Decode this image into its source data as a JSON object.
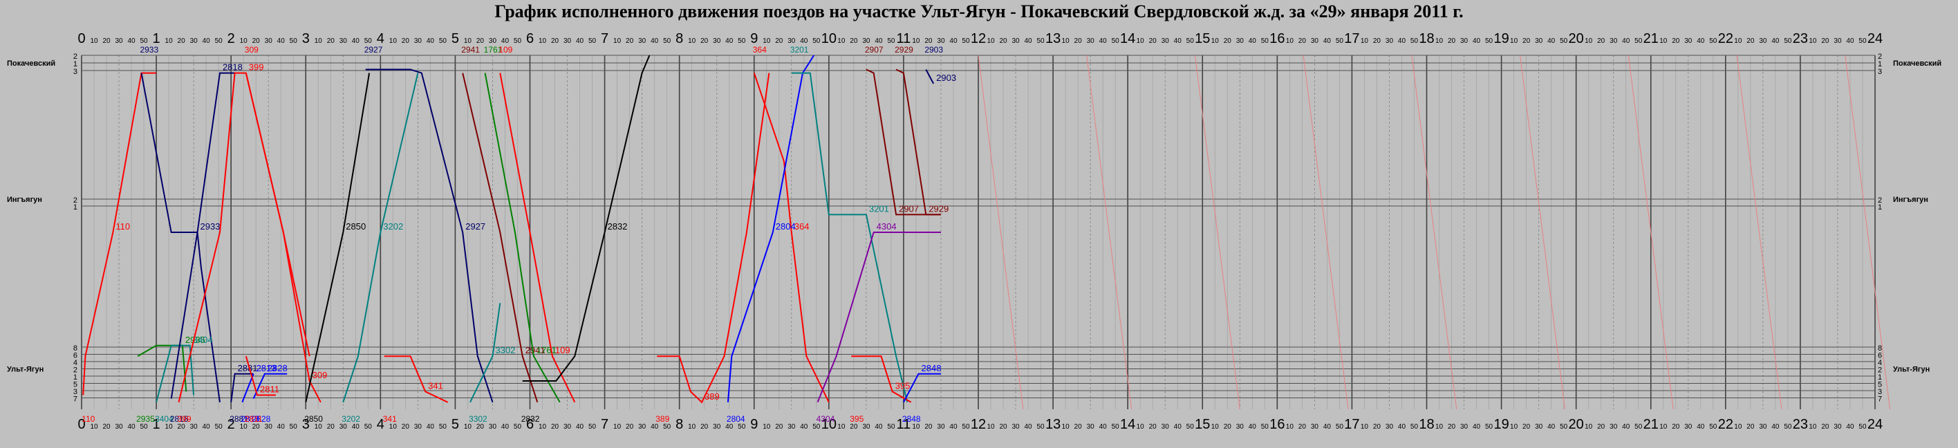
{
  "title": "График исполненного движения поездов на участке Ульт-Ягун - Покачевский  Свердловской ж.д. за «29» января 2011 г.",
  "chart_data": {
    "type": "line",
    "title": "График исполненного движения поездов на участке Ульт-Ягун - Покачевский  Свердловской ж.д. за «29» января 2011 г.",
    "x_unit": "hours",
    "xlim": [
      0,
      24
    ],
    "hour_labels": [
      "0",
      "1",
      "2",
      "3",
      "4",
      "5",
      "6",
      "7",
      "8",
      "9",
      "10",
      "11",
      "12",
      "13",
      "14",
      "15",
      "16",
      "17",
      "18",
      "19",
      "20",
      "21",
      "22",
      "23",
      "24"
    ],
    "minute_labels": [
      "10",
      "20",
      "30",
      "40",
      "50"
    ],
    "stations": [
      {
        "name": "Покачевский",
        "tracks": [
          "2",
          "1",
          "3"
        ]
      },
      {
        "name": "Ингъягун",
        "tracks": [
          "2",
          "1"
        ]
      },
      {
        "name": "Ульт-Ягун",
        "tracks": [
          "8",
          "6",
          "4",
          "2",
          "1",
          "5",
          "3",
          "7"
        ]
      }
    ],
    "colors": {
      "red": "#ff0000",
      "navy": "#00006a",
      "blue": "#0000ff",
      "teal": "#008080",
      "black": "#000000",
      "green": "#008000",
      "maroon": "#800000",
      "purple": "#8000a0",
      "pink": "#e88080"
    },
    "trains": [
      {
        "name": "110",
        "color": "red",
        "pts": [
          [
            0.02,
            0.96
          ],
          [
            0.05,
            0.85
          ],
          [
            0.42,
            0.5
          ],
          [
            0.8,
            0.05
          ],
          [
            1.0,
            0.05
          ]
        ]
      },
      {
        "name": "2933",
        "color": "navy",
        "pts": [
          [
            0.8,
            0.05
          ],
          [
            1.2,
            0.5
          ],
          [
            1.55,
            0.5
          ],
          [
            1.6,
            0.6
          ],
          [
            1.85,
            0.98
          ]
        ]
      },
      {
        "name": "2935",
        "color": "green",
        "pts": [
          [
            0.75,
            0.85
          ],
          [
            1.0,
            0.82
          ],
          [
            1.35,
            0.82
          ],
          [
            1.4,
            0.95
          ]
        ]
      },
      {
        "name": "3404",
        "color": "teal",
        "pts": [
          [
            1.0,
            0.98
          ],
          [
            1.2,
            0.82
          ],
          [
            1.45,
            0.82
          ],
          [
            1.5,
            0.96
          ]
        ]
      },
      {
        "name": "2818",
        "color": "navy",
        "pts": [
          [
            1.2,
            0.97
          ],
          [
            1.55,
            0.5
          ],
          [
            1.85,
            0.05
          ],
          [
            2.05,
            0.05
          ]
        ]
      },
      {
        "name": "399",
        "color": "red",
        "pts": [
          [
            1.3,
            0.98
          ],
          [
            1.85,
            0.5
          ],
          [
            2.05,
            0.05
          ],
          [
            2.2,
            0.05
          ],
          [
            2.7,
            0.5
          ],
          [
            3.05,
            0.85
          ]
        ]
      },
      {
        "name": "2881",
        "color": "navy",
        "pts": [
          [
            2.0,
            0.98
          ],
          [
            2.05,
            0.9
          ],
          [
            2.3,
            0.9
          ]
        ]
      },
      {
        "name": "2813",
        "color": "blue",
        "pts": [
          [
            2.15,
            0.98
          ],
          [
            2.3,
            0.9
          ]
        ]
      },
      {
        "name": "2828",
        "color": "blue",
        "pts": [
          [
            2.3,
            0.97
          ],
          [
            2.45,
            0.9
          ],
          [
            2.75,
            0.9
          ]
        ]
      },
      {
        "name": "2811",
        "color": "red",
        "pts": [
          [
            2.2,
            0.85
          ],
          [
            2.35,
            0.96
          ],
          [
            2.6,
            0.96
          ]
        ]
      },
      {
        "name": "309",
        "color": "red",
        "pts": [
          [
            2.2,
            0.05
          ],
          [
            2.7,
            0.5
          ],
          [
            3.05,
            0.92
          ],
          [
            3.2,
            0.98
          ]
        ]
      },
      {
        "name": "2850",
        "color": "black",
        "pts": [
          [
            3.0,
            0.98
          ],
          [
            3.5,
            0.5
          ],
          [
            3.85,
            0.05
          ]
        ]
      },
      {
        "name": "2927",
        "color": "navy",
        "pts": [
          [
            3.8,
            0.04
          ],
          [
            4.4,
            0.04
          ],
          [
            4.55,
            0.05
          ],
          [
            5.1,
            0.5
          ],
          [
            5.3,
            0.85
          ],
          [
            5.5,
            0.98
          ]
        ]
      },
      {
        "name": "3202",
        "color": "teal",
        "pts": [
          [
            3.5,
            0.98
          ],
          [
            3.7,
            0.85
          ],
          [
            4.0,
            0.5
          ],
          [
            4.5,
            0.05
          ]
        ]
      },
      {
        "name": "341",
        "color": "red",
        "pts": [
          [
            4.05,
            0.85
          ],
          [
            4.4,
            0.85
          ],
          [
            4.6,
            0.95
          ],
          [
            4.9,
            0.98
          ]
        ]
      },
      {
        "name": "2941",
        "color": "maroon",
        "pts": [
          [
            5.1,
            0.05
          ],
          [
            5.6,
            0.5
          ],
          [
            5.9,
            0.85
          ],
          [
            6.1,
            0.98
          ]
        ]
      },
      {
        "name": "1761",
        "color": "green",
        "pts": [
          [
            5.4,
            0.05
          ],
          [
            5.8,
            0.5
          ],
          [
            6.05,
            0.85
          ],
          [
            6.4,
            0.98
          ]
        ]
      },
      {
        "name": "109",
        "color": "red",
        "pts": [
          [
            5.6,
            0.05
          ],
          [
            6.0,
            0.5
          ],
          [
            6.3,
            0.85
          ],
          [
            6.6,
            0.98
          ]
        ]
      },
      {
        "name": "3302",
        "color": "teal",
        "pts": [
          [
            5.2,
            0.98
          ],
          [
            5.5,
            0.85
          ],
          [
            5.6,
            0.7
          ]
        ]
      },
      {
        "name": "2832",
        "color": "black",
        "pts": [
          [
            5.9,
            0.92
          ],
          [
            6.35,
            0.92
          ],
          [
            6.6,
            0.85
          ],
          [
            7.0,
            0.5
          ],
          [
            7.5,
            0.05
          ],
          [
            7.6,
            0.0
          ]
        ]
      },
      {
        "name": "389",
        "color": "red",
        "pts": [
          [
            7.7,
            0.85
          ],
          [
            8.0,
            0.85
          ],
          [
            8.15,
            0.95
          ],
          [
            8.3,
            0.98
          ],
          [
            8.6,
            0.85
          ],
          [
            8.9,
            0.5
          ],
          [
            9.2,
            0.05
          ]
        ]
      },
      {
        "name": "364",
        "color": "red",
        "pts": [
          [
            9.0,
            0.05
          ],
          [
            9.4,
            0.3
          ],
          [
            9.5,
            0.5
          ],
          [
            9.7,
            0.85
          ],
          [
            10.0,
            0.98
          ]
        ]
      },
      {
        "name": "2804",
        "color": "blue",
        "pts": [
          [
            8.65,
            0.98
          ],
          [
            8.7,
            0.85
          ],
          [
            9.25,
            0.5
          ],
          [
            9.65,
            0.05
          ],
          [
            9.8,
            0.0
          ]
        ]
      },
      {
        "name": "3201",
        "color": "teal",
        "pts": [
          [
            9.5,
            0.05
          ],
          [
            9.75,
            0.05
          ],
          [
            10.0,
            0.45
          ],
          [
            10.5,
            0.45
          ],
          [
            10.9,
            0.85
          ],
          [
            11.05,
            0.98
          ]
        ]
      },
      {
        "name": "4304",
        "color": "purple",
        "pts": [
          [
            9.85,
            0.98
          ],
          [
            10.1,
            0.85
          ],
          [
            10.6,
            0.5
          ],
          [
            11.5,
            0.5
          ]
        ]
      },
      {
        "name": "395",
        "color": "red",
        "pts": [
          [
            10.3,
            0.85
          ],
          [
            10.7,
            0.85
          ],
          [
            10.85,
            0.95
          ],
          [
            11.1,
            0.98
          ]
        ]
      },
      {
        "name": "2907",
        "color": "maroon",
        "pts": [
          [
            10.5,
            0.04
          ],
          [
            10.6,
            0.05
          ],
          [
            10.9,
            0.45
          ],
          [
            11.5,
            0.45
          ]
        ]
      },
      {
        "name": "2929",
        "color": "maroon",
        "pts": [
          [
            10.9,
            0.04
          ],
          [
            11.0,
            0.05
          ],
          [
            11.3,
            0.45
          ],
          [
            11.5,
            0.45
          ]
        ]
      },
      {
        "name": "2903",
        "color": "navy",
        "pts": [
          [
            11.3,
            0.04
          ],
          [
            11.4,
            0.08
          ]
        ]
      },
      {
        "name": "2848",
        "color": "blue",
        "pts": [
          [
            11.0,
            0.98
          ],
          [
            11.2,
            0.9
          ],
          [
            11.5,
            0.9
          ]
        ]
      }
    ]
  }
}
